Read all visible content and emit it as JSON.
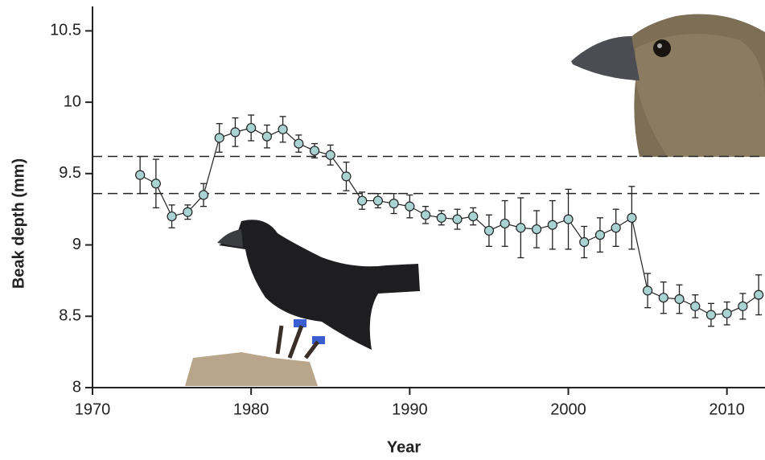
{
  "chart_data": {
    "type": "line",
    "x_label": "Year",
    "y_label": "Beak depth (mm)",
    "x": [
      1973,
      1974,
      1975,
      1976,
      1977,
      1978,
      1979,
      1980,
      1981,
      1982,
      1983,
      1984,
      1985,
      1986,
      1987,
      1988,
      1989,
      1990,
      1991,
      1992,
      1993,
      1994,
      1995,
      1996,
      1997,
      1998,
      1999,
      2000,
      2001,
      2002,
      2003,
      2004,
      2005,
      2006,
      2007,
      2008,
      2009,
      2010,
      2011,
      2012
    ],
    "values": [
      9.49,
      9.43,
      9.2,
      9.23,
      9.35,
      9.75,
      9.79,
      9.82,
      9.76,
      9.81,
      9.71,
      9.66,
      9.63,
      9.48,
      9.31,
      9.31,
      9.29,
      9.27,
      9.21,
      9.19,
      9.18,
      9.2,
      9.1,
      9.15,
      9.12,
      9.11,
      9.14,
      9.18,
      9.02,
      9.07,
      9.12,
      9.19,
      8.68,
      8.63,
      8.62,
      8.57,
      8.51,
      8.52,
      8.57,
      8.65
    ],
    "errors": [
      0.13,
      0.17,
      0.08,
      0.05,
      0.08,
      0.1,
      0.1,
      0.09,
      0.08,
      0.09,
      0.06,
      0.05,
      0.07,
      0.1,
      0.06,
      0.05,
      0.07,
      0.08,
      0.06,
      0.05,
      0.07,
      0.06,
      0.11,
      0.16,
      0.21,
      0.13,
      0.17,
      0.21,
      0.11,
      0.12,
      0.13,
      0.22,
      0.12,
      0.11,
      0.1,
      0.08,
      0.08,
      0.08,
      0.09,
      0.14
    ],
    "color": "#a9d2d3",
    "reference_lines": [
      9.62,
      9.36
    ],
    "xlim": [
      1970,
      2012.4
    ],
    "xticks": [
      1970,
      1980,
      1990,
      2000,
      2010
    ],
    "ylim": [
      8,
      10.66
    ],
    "yticks": [
      8,
      8.5,
      9,
      9.5,
      10,
      10.5
    ]
  }
}
